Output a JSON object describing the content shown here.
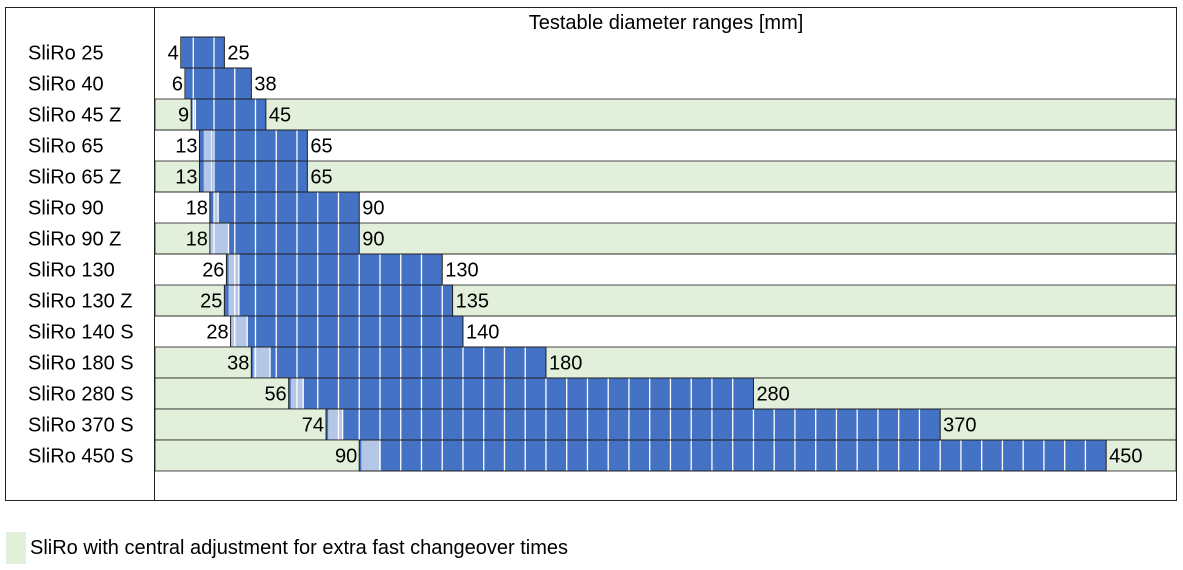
{
  "colors": {
    "band": "#e2efda",
    "bar": "#4472c4",
    "bar_light": "#b4c7e7",
    "segment_line": "#ffffff",
    "outline": "#1f1f1f"
  },
  "legend": {
    "text": "SliRo with central adjustment for extra fast changeover times",
    "swatch_color": "#e2efda"
  },
  "chart_data": {
    "type": "bar",
    "orientation": "horizontal-range",
    "title": "Testable diameter ranges [mm]",
    "unit": "mm",
    "xlim": [
      0,
      480
    ],
    "segment_width_mm": 10,
    "grid": false,
    "legend_position": "bottom-left",
    "rows": [
      {
        "label": "SliRo 25",
        "min": 4,
        "max": 25,
        "central_adjustment": false,
        "light_from": 4,
        "light_to": 4
      },
      {
        "label": "SliRo 40",
        "min": 6,
        "max": 38,
        "central_adjustment": false,
        "light_from": 6,
        "light_to": 6
      },
      {
        "label": "SliRo 45 Z",
        "min": 9,
        "max": 45,
        "central_adjustment": true,
        "light_from": 10,
        "light_to": 11
      },
      {
        "label": "SliRo 65",
        "min": 13,
        "max": 65,
        "central_adjustment": false,
        "light_from": 15,
        "light_to": 19
      },
      {
        "label": "SliRo 65 Z",
        "min": 13,
        "max": 65,
        "central_adjustment": true,
        "light_from": 15,
        "light_to": 19
      },
      {
        "label": "SliRo 90",
        "min": 18,
        "max": 90,
        "central_adjustment": false,
        "light_from": 20,
        "light_to": 22
      },
      {
        "label": "SliRo 90 Z",
        "min": 18,
        "max": 90,
        "central_adjustment": true,
        "light_from": 18,
        "light_to": 27
      },
      {
        "label": "SliRo 130",
        "min": 26,
        "max": 130,
        "central_adjustment": false,
        "light_from": 27,
        "light_to": 32
      },
      {
        "label": "SliRo 130 Z",
        "min": 25,
        "max": 135,
        "central_adjustment": true,
        "light_from": 27,
        "light_to": 32
      },
      {
        "label": "SliRo 140 S",
        "min": 28,
        "max": 140,
        "central_adjustment": false,
        "light_from": 28,
        "light_to": 36
      },
      {
        "label": "SliRo 180 S",
        "min": 38,
        "max": 180,
        "central_adjustment": true,
        "light_from": 39,
        "light_to": 47
      },
      {
        "label": "SliRo 280 S",
        "min": 56,
        "max": 280,
        "central_adjustment": true,
        "light_from": 57,
        "light_to": 63
      },
      {
        "label": "SliRo 370 S",
        "min": 74,
        "max": 370,
        "central_adjustment": true,
        "light_from": 75,
        "light_to": 82
      },
      {
        "label": "SliRo 450 S",
        "min": 90,
        "max": 450,
        "central_adjustment": true,
        "light_from": 91,
        "light_to": 100
      }
    ]
  }
}
